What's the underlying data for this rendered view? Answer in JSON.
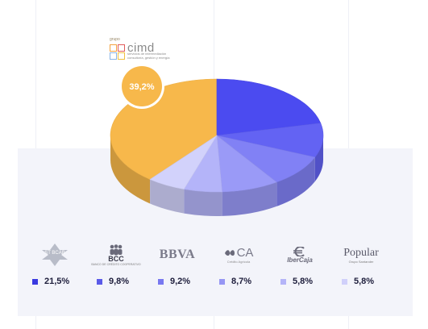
{
  "logo": {
    "group_label": "grupo",
    "name": "cimd",
    "subtitle_line1": "servicios de intermediación",
    "subtitle_line2": "consultoría, gestión y energía"
  },
  "chart_data": {
    "type": "pie",
    "title": "",
    "highlight_label": "39,2%",
    "slices": [
      {
        "label": "Grupo CIMD",
        "value": 39.2,
        "color": "#f7b84b"
      },
      {
        "label": "Santander (ST / BCAB)",
        "value": 21.5,
        "color": "#4b4bf0"
      },
      {
        "label": "BCC",
        "value": 9.8,
        "color": "#6363f3"
      },
      {
        "label": "BBVA",
        "value": 9.2,
        "color": "#8181f5"
      },
      {
        "label": "CA",
        "value": 8.7,
        "color": "#9a9af7"
      },
      {
        "label": "IberCaja",
        "value": 5.8,
        "color": "#b4b4f9"
      },
      {
        "label": "Popular",
        "value": 5.8,
        "color": "#d2d2fb"
      }
    ]
  },
  "legend": [
    {
      "brand": "ST BCAB",
      "value": "21,5%",
      "color": "#3a3ae0"
    },
    {
      "brand": "BCC",
      "sub": "BANCO DE CRÉDITO COOPERATIVO",
      "value": "9,8%",
      "color": "#5a5ae8"
    },
    {
      "brand": "BBVA",
      "value": "9,2%",
      "color": "#7878f0"
    },
    {
      "brand": "CA",
      "sub": "Crédito Agrícola",
      "value": "8,7%",
      "color": "#9696f4"
    },
    {
      "brand": "IberCaja",
      "value": "5,8%",
      "color": "#b4b4f8"
    },
    {
      "brand": "Popular",
      "sub": "Grupo Santander",
      "value": "5,8%",
      "color": "#d0d0fa"
    }
  ]
}
